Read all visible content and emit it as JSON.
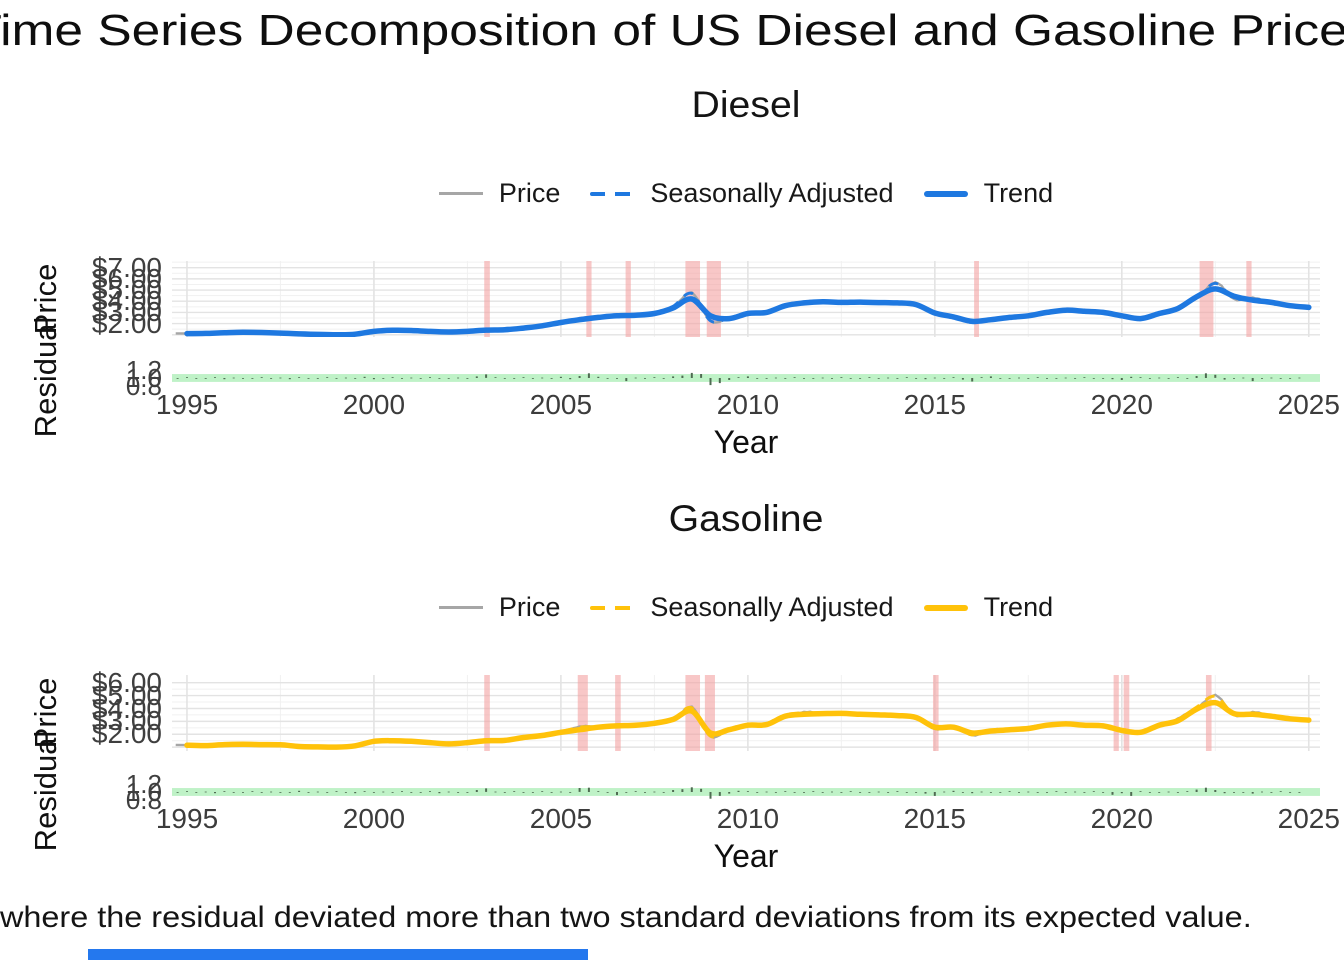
{
  "title": "Time Series Decomposition of US Diesel and Gasoline Prices",
  "caption": "where the residual deviated more than two standard deviations from its expected value.",
  "bottom_bar_color": "#2478ee",
  "chart_data": [
    {
      "type": "line",
      "title": "Diesel",
      "xlabel": "Year",
      "ylabel": "Price",
      "ylabel2": "Residual",
      "legend": [
        {
          "label": "Price"
        },
        {
          "label": "Seasonally Adjusted"
        },
        {
          "label": "Trend"
        }
      ],
      "colors": {
        "price": "#a6a6a6",
        "accent": "#1e78e0",
        "anomaly": "#f3a2a2",
        "grid_major": "#e3e3e3",
        "grid_minor": "#f1f1f1",
        "residual_bar": "#4f6b52",
        "residual_band": "#bff2c7"
      },
      "x_domain": [
        1994.6,
        2025.3
      ],
      "x_ticks": [
        1995,
        2000,
        2005,
        2010,
        2015,
        2020,
        2025
      ],
      "x_minor": [
        1997.5,
        2002.5,
        2007.5,
        2012.5,
        2017.5,
        2022.5
      ],
      "y_domain": [
        0.8,
        7.6
      ],
      "y_major": [
        1,
        2,
        3,
        4,
        5,
        6,
        7
      ],
      "y_minor": [
        1.5,
        2.5,
        3.5,
        4.5,
        5.5,
        6.5,
        7.5
      ],
      "y_tick_values": [
        7,
        6,
        5,
        4,
        3,
        2
      ],
      "y_tick_labels": [
        "$7.00",
        "$6.00",
        "$5.00",
        "$4.00",
        "$3.00",
        "$2.00"
      ],
      "series_x_start": 1995.0,
      "series_x_step": 0.5,
      "seasonal_amplitude": 0.016,
      "price": [
        1.12,
        1.1,
        1.19,
        1.25,
        1.22,
        1.13,
        1.09,
        1.01,
        0.98,
        1.08,
        1.32,
        1.45,
        1.4,
        1.28,
        1.22,
        1.32,
        1.48,
        1.42,
        1.62,
        1.85,
        2.15,
        2.45,
        2.6,
        2.72,
        2.72,
        2.95,
        3.55,
        4.7,
        2.25,
        2.5,
        2.95,
        3.05,
        3.7,
        3.9,
        4.0,
        3.86,
        3.95,
        3.85,
        3.88,
        3.65,
        2.9,
        2.55,
        2.1,
        2.38,
        2.58,
        2.75,
        3.05,
        3.25,
        3.05,
        2.98,
        2.72,
        2.4,
        2.95,
        3.4,
        4.3,
        5.6,
        4.25,
        4.25,
        3.85,
        3.55,
        3.5
      ],
      "trend": [
        1.1,
        1.12,
        1.18,
        1.22,
        1.2,
        1.15,
        1.08,
        1.03,
        1.0,
        1.05,
        1.3,
        1.4,
        1.38,
        1.3,
        1.25,
        1.3,
        1.42,
        1.45,
        1.6,
        1.8,
        2.1,
        2.35,
        2.55,
        2.7,
        2.75,
        2.9,
        3.4,
        4.2,
        2.7,
        2.45,
        2.9,
        3.0,
        3.6,
        3.85,
        3.95,
        3.9,
        3.92,
        3.88,
        3.85,
        3.7,
        2.95,
        2.6,
        2.2,
        2.35,
        2.55,
        2.7,
        3.0,
        3.2,
        3.1,
        3.0,
        2.7,
        2.45,
        2.9,
        3.35,
        4.4,
        5.1,
        4.45,
        4.1,
        3.9,
        3.6,
        3.45
      ],
      "anomaly_bands": [
        [
          2002.95,
          2003.1
        ],
        [
          2005.68,
          2005.82
        ],
        [
          2006.73,
          2006.87
        ],
        [
          2008.33,
          2008.72
        ],
        [
          2008.9,
          2009.28
        ],
        [
          2016.05,
          2016.18
        ],
        [
          2022.08,
          2022.45
        ],
        [
          2023.33,
          2023.47
        ]
      ],
      "residual": {
        "x_start": 1994.5,
        "x_step": 0.25,
        "domain": [
          0.72,
          1.33
        ],
        "band": [
          0.9,
          1.1
        ],
        "ticks": [
          1.2,
          1.0,
          0.8
        ],
        "values": [
          1.01,
          0.99,
          1.02,
          0.98,
          1.0,
          1.02,
          0.97,
          1.01,
          1.0,
          0.98,
          1.02,
          0.99,
          1.01,
          0.97,
          1.02,
          1.0,
          0.99,
          1.02,
          0.98,
          1.01,
          1.0,
          1.03,
          0.97,
          1.0,
          1.02,
          0.98,
          1.01,
          0.99,
          1.02,
          0.98,
          1.0,
          1.01,
          0.99,
          1.04,
          1.09,
          1.02,
          0.98,
          1.0,
          1.02,
          0.98,
          1.01,
          0.99,
          1.03,
          0.97,
          1.05,
          1.12,
          1.03,
          0.98,
          1.0,
          0.92,
          1.01,
          0.99,
          1.02,
          1.0,
          1.04,
          1.06,
          1.13,
          1.1,
          0.82,
          0.87,
          0.95,
          1.02,
          1.04,
          1.0,
          0.98,
          1.01,
          0.99,
          1.02,
          1.0,
          0.98,
          1.01,
          0.99,
          1.02,
          0.98,
          1.0,
          1.02,
          0.98,
          1.01,
          0.99,
          1.02,
          1.0,
          0.97,
          1.01,
          0.99,
          1.02,
          0.96,
          0.91,
          1.02,
          1.04,
          1.0,
          0.98,
          1.01,
          0.99,
          1.02,
          1.0,
          0.98,
          1.01,
          0.99,
          1.02,
          0.98,
          1.0,
          0.97,
          0.95,
          1.03,
          1.02,
          0.99,
          1.01,
          0.98,
          1.02,
          1.0,
          1.05,
          1.12,
          1.08,
          0.96,
          0.98,
          1.01,
          0.92,
          0.99,
          1.01,
          0.98,
          1.0,
          1.01
        ]
      }
    },
    {
      "type": "line",
      "title": "Gasoline",
      "xlabel": "Year",
      "ylabel": "Price",
      "ylabel2": "Residual",
      "legend": [
        {
          "label": "Price"
        },
        {
          "label": "Seasonally Adjusted"
        },
        {
          "label": "Trend"
        }
      ],
      "colors": {
        "price": "#a6a6a6",
        "accent": "#ffc20a",
        "anomaly": "#f3a2a2",
        "grid_major": "#e3e3e3",
        "grid_minor": "#f1f1f1",
        "residual_bar": "#4f6b52",
        "residual_band": "#bff2c7"
      },
      "x_domain": [
        1994.6,
        2025.3
      ],
      "x_ticks": [
        1995,
        2000,
        2005,
        2010,
        2015,
        2020,
        2025
      ],
      "x_minor": [
        1997.5,
        2002.5,
        2007.5,
        2012.5,
        2017.5,
        2022.5
      ],
      "y_domain": [
        0.7,
        6.6
      ],
      "y_major": [
        1,
        2,
        3,
        4,
        5,
        6
      ],
      "y_minor": [
        1.5,
        2.5,
        3.5,
        4.5,
        5.5
      ],
      "y_tick_values": [
        6,
        5,
        4,
        3,
        2
      ],
      "y_tick_labels": [
        "$6.00",
        "$5.00",
        "$4.00",
        "$3.00",
        "$2.00"
      ],
      "series_x_start": 1995.0,
      "series_x_step": 0.5,
      "seasonal_amplitude": 0.02,
      "price": [
        1.17,
        1.13,
        1.22,
        1.24,
        1.22,
        1.16,
        1.06,
        1.0,
        0.98,
        1.12,
        1.5,
        1.55,
        1.48,
        1.3,
        1.22,
        1.38,
        1.55,
        1.5,
        1.78,
        1.95,
        2.2,
        2.55,
        2.6,
        2.7,
        2.75,
        2.9,
        3.2,
        4.05,
        1.85,
        2.4,
        2.75,
        2.8,
        3.5,
        3.65,
        3.65,
        3.6,
        3.58,
        3.52,
        3.5,
        3.25,
        2.45,
        2.6,
        1.95,
        2.3,
        2.4,
        2.5,
        2.75,
        2.85,
        2.75,
        2.6,
        2.4,
        2.15,
        2.75,
        3.15,
        4.1,
        4.95,
        3.55,
        3.65,
        3.45,
        3.15,
        3.1
      ],
      "trend": [
        1.15,
        1.12,
        1.2,
        1.22,
        1.2,
        1.18,
        1.05,
        1.02,
        1.0,
        1.1,
        1.45,
        1.5,
        1.45,
        1.35,
        1.25,
        1.35,
        1.5,
        1.52,
        1.75,
        1.9,
        2.15,
        2.35,
        2.55,
        2.65,
        2.7,
        2.85,
        3.15,
        3.8,
        2.1,
        2.35,
        2.7,
        2.75,
        3.4,
        3.55,
        3.6,
        3.62,
        3.55,
        3.5,
        3.45,
        3.3,
        2.55,
        2.55,
        2.1,
        2.25,
        2.35,
        2.45,
        2.7,
        2.8,
        2.7,
        2.65,
        2.3,
        2.15,
        2.7,
        3.05,
        3.95,
        4.45,
        3.6,
        3.55,
        3.4,
        3.2,
        3.1
      ],
      "anomaly_bands": [
        [
          2002.95,
          2003.1
        ],
        [
          2005.45,
          2005.72
        ],
        [
          2006.45,
          2006.6
        ],
        [
          2008.33,
          2008.72
        ],
        [
          2008.85,
          2009.12
        ],
        [
          2014.95,
          2015.1
        ],
        [
          2019.78,
          2019.92
        ],
        [
          2020.05,
          2020.2
        ],
        [
          2022.25,
          2022.4
        ]
      ],
      "residual": {
        "x_start": 1994.5,
        "x_step": 0.25,
        "domain": [
          0.72,
          1.33
        ],
        "band": [
          0.9,
          1.1
        ],
        "ticks": [
          1.2,
          1.0,
          0.8
        ],
        "values": [
          1.0,
          0.98,
          1.02,
          0.99,
          1.01,
          0.97,
          1.02,
          1.0,
          0.99,
          1.02,
          0.98,
          1.01,
          1.0,
          0.98,
          1.03,
          0.99,
          1.01,
          0.98,
          1.02,
          1.0,
          0.97,
          1.02,
          0.99,
          1.01,
          0.98,
          1.02,
          1.0,
          0.99,
          1.02,
          0.97,
          1.01,
          1.0,
          0.98,
          1.05,
          1.09,
          1.01,
          0.99,
          1.02,
          0.98,
          1.0,
          1.02,
          0.98,
          1.01,
          0.99,
          1.1,
          1.11,
          1.02,
          0.98,
          0.92,
          1.0,
          1.02,
          0.98,
          1.01,
          1.0,
          1.05,
          1.07,
          1.12,
          1.08,
          0.83,
          0.9,
          0.96,
          1.03,
          1.02,
          0.99,
          1.01,
          0.98,
          1.02,
          0.99,
          1.0,
          1.02,
          0.98,
          1.01,
          0.99,
          1.02,
          0.98,
          1.0,
          1.01,
          0.99,
          1.02,
          0.98,
          1.0,
          0.96,
          0.9,
          1.01,
          1.03,
          0.99,
          0.97,
          1.01,
          1.0,
          0.98,
          1.02,
          0.99,
          1.01,
          1.0,
          0.98,
          1.02,
          0.99,
          1.01,
          0.98,
          1.02,
          1.0,
          0.93,
          0.97,
          0.9,
          1.02,
          1.0,
          0.98,
          1.01,
          0.99,
          1.02,
          1.06,
          1.11,
          1.05,
          0.97,
          0.99,
          1.0,
          0.96,
          1.01,
          0.99,
          1.02,
          1.0,
          0.99
        ]
      }
    }
  ]
}
